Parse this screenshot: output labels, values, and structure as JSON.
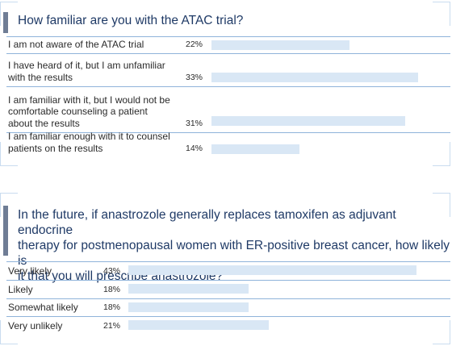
{
  "accent_color": "#6f7d95",
  "title_color": "#1f3a66",
  "bar_color": "#d9e7f5",
  "separator_color": "#8fb3da",
  "chart_data": [
    {
      "type": "bar",
      "orientation": "horizontal",
      "title": "How familiar are you with the ATAC trial?",
      "categories": [
        [
          "I am not aware of the ATAC trial"
        ],
        [
          "I have heard of it, but I am unfamiliar",
          "with the results"
        ],
        [
          "I am familiar with it, but I would not be",
          "comfortable counseling a patient",
          "about the results"
        ],
        [
          "I am familiar enough with it to counsel",
          "patients on the results"
        ]
      ],
      "values": [
        22,
        33,
        31,
        14
      ],
      "value_labels": [
        "22%",
        "33%",
        "31%",
        "14%"
      ],
      "xlim": [
        0,
        33
      ]
    },
    {
      "type": "bar",
      "orientation": "horizontal",
      "title": [
        "In the future, if anastrozole generally replaces tamoxifen as adjuvant endocrine",
        "therapy for postmenopausal women with ER-positive breast cancer, how likely is",
        "it that you will prescribe anastrozole?"
      ],
      "categories": [
        [
          "Very likely"
        ],
        [
          "Likely"
        ],
        [
          "Somewhat likely"
        ],
        [
          "Very unlikely"
        ]
      ],
      "values": [
        43,
        18,
        18,
        21
      ],
      "value_labels": [
        "43%",
        "18%",
        "18%",
        "21%"
      ],
      "xlim": [
        0,
        43
      ]
    }
  ]
}
